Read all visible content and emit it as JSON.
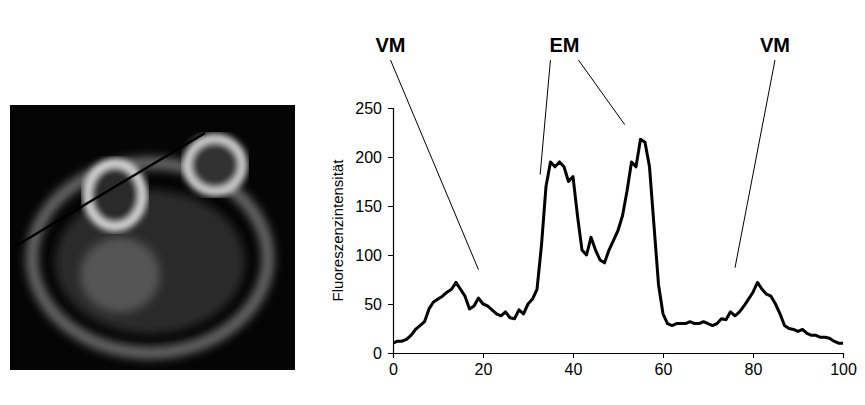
{
  "chart_data": {
    "type": "line",
    "y_label": "Fluoreszenzintensität",
    "x": [
      0,
      1,
      2,
      3,
      4,
      5,
      6,
      7,
      8,
      9,
      10,
      11,
      12,
      13,
      14,
      15,
      16,
      17,
      18,
      19,
      20,
      21,
      22,
      23,
      24,
      25,
      26,
      27,
      28,
      29,
      30,
      31,
      32,
      33,
      34,
      35,
      36,
      37,
      38,
      39,
      40,
      41,
      42,
      43,
      44,
      45,
      46,
      47,
      48,
      49,
      50,
      51,
      52,
      53,
      54,
      55,
      56,
      57,
      58,
      59,
      60,
      61,
      62,
      63,
      64,
      65,
      66,
      67,
      68,
      69,
      70,
      71,
      72,
      73,
      74,
      75,
      76,
      77,
      78,
      79,
      80,
      81,
      82,
      83,
      84,
      85,
      86,
      87,
      88,
      89,
      90,
      91,
      92,
      93,
      94,
      95,
      96,
      97,
      98,
      99,
      100
    ],
    "series": [
      {
        "color": "#000000",
        "values": [
          10,
          12,
          12,
          14,
          18,
          24,
          28,
          32,
          45,
          52,
          55,
          58,
          62,
          65,
          72,
          65,
          58,
          45,
          48,
          56,
          50,
          48,
          44,
          40,
          38,
          42,
          36,
          35,
          44,
          40,
          50,
          55,
          65,
          110,
          170,
          195,
          190,
          195,
          190,
          175,
          180,
          140,
          105,
          100,
          118,
          105,
          95,
          92,
          105,
          115,
          125,
          140,
          165,
          195,
          190,
          218,
          215,
          190,
          130,
          70,
          40,
          30,
          28,
          30,
          30,
          30,
          32,
          30,
          30,
          32,
          30,
          28,
          30,
          35,
          34,
          42,
          38,
          42,
          48,
          55,
          62,
          72,
          65,
          60,
          58,
          50,
          40,
          28,
          25,
          24,
          22,
          24,
          20,
          18,
          18,
          16,
          16,
          15,
          12,
          10,
          10
        ]
      }
    ],
    "xlim": [
      0,
      100
    ],
    "ylim": [
      0,
      250
    ],
    "xticks": [
      0,
      20,
      40,
      60,
      80,
      100
    ],
    "yticks": [
      0,
      50,
      100,
      150,
      200,
      250
    ],
    "grid": false,
    "annotations": [
      {
        "text": "VM",
        "x": [
          19
        ],
        "y": [
          85
        ]
      },
      {
        "text": "EM",
        "x": [
          32.7,
          51.5
        ],
        "y": [
          182,
          233
        ]
      },
      {
        "text": "VM",
        "x": [
          76
        ],
        "y": [
          87
        ]
      }
    ]
  }
}
